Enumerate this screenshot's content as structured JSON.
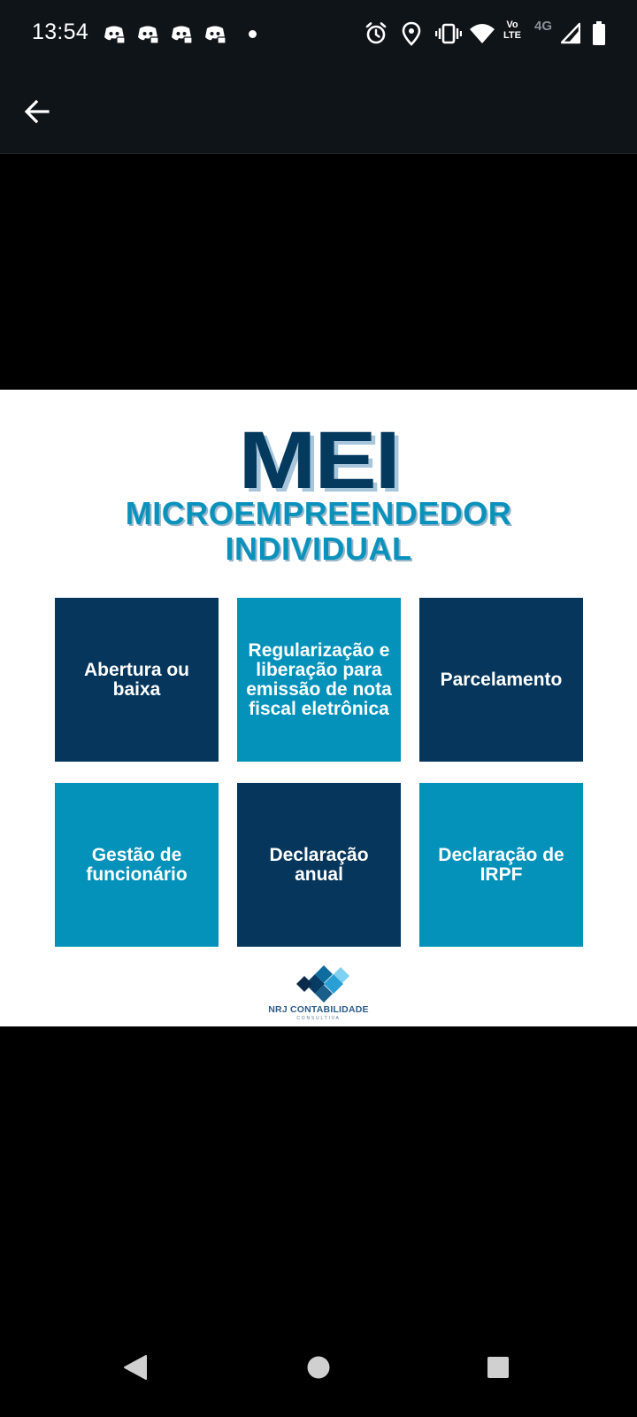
{
  "status_bar": {
    "time": "13:54",
    "network": "4G",
    "lte_top": "Vo",
    "lte_bottom": "LTE",
    "icons": [
      "discord-icon",
      "discord-icon",
      "discord-icon",
      "discord-icon",
      "alarm-icon",
      "location-icon",
      "vibrate-icon",
      "wifi-icon",
      "signal-icon",
      "battery-icon"
    ]
  },
  "app_bar": {
    "back_icon": "arrow-left-icon"
  },
  "post": {
    "title": "MEI",
    "subtitle_line1": "MICROEMPREENDEDOR",
    "subtitle_line2": "INDIVIDUAL",
    "tiles": [
      {
        "label": "Abertura ou baixa",
        "color": "#06365b"
      },
      {
        "label": "Regularização e liberação para emissão de nota fiscal eletrônica",
        "color": "#0492bb"
      },
      {
        "label": "Parcelamento",
        "color": "#06365b"
      },
      {
        "label": "Gestão de funcionário",
        "color": "#0492bb"
      },
      {
        "label": "Declaração anual",
        "color": "#06365b"
      },
      {
        "label": "Declaração de IRPF",
        "color": "#0492bb"
      }
    ],
    "logo": {
      "name": "NRJ CONTABILIDADE",
      "tagline": "CONSULTIVA"
    }
  },
  "colors": {
    "navy": "#06365b",
    "cyan": "#0492bb",
    "statusbar_bg": "#0f1419"
  },
  "nav_bar": {
    "icons": [
      "back-triangle-icon",
      "home-circle-icon",
      "recents-square-icon"
    ]
  }
}
